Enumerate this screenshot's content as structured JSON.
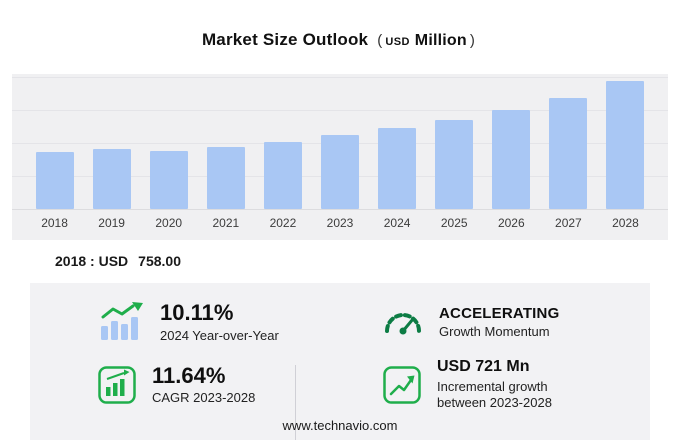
{
  "title": {
    "main": "Market Size Outlook",
    "open": "(",
    "currency": "USD",
    "word": "Million",
    "close": ")"
  },
  "chart_data": {
    "type": "bar",
    "title": "Market Size Outlook (USD Million)",
    "categories": [
      "2018",
      "2019",
      "2020",
      "2021",
      "2022",
      "2023",
      "2024",
      "2025",
      "2026",
      "2027",
      "2028"
    ],
    "values": [
      758,
      800,
      780,
      830,
      890,
      981,
      1080,
      1190,
      1320,
      1480,
      1702
    ],
    "unit": "USD Million",
    "xlabel": "",
    "ylabel": "",
    "ylim": [
      0,
      1800
    ],
    "grid": true,
    "legend": false,
    "bar_color": "#a9c7f4"
  },
  "annotation": {
    "base_label": "2018 : USD",
    "base_value": "758.00"
  },
  "stats": {
    "yoy": {
      "value": "10.11%",
      "label": "2024 Year-over-Year"
    },
    "momentum": {
      "value": "ACCELERATING",
      "label": "Growth Momentum"
    },
    "cagr": {
      "value": "11.64%",
      "label": "CAGR 2023-2028"
    },
    "incremental": {
      "value": "USD 721 Mn",
      "label": "Incremental growth between 2023-2028"
    }
  },
  "icons": {
    "yoy": "bars-with-up-arrow-icon",
    "momentum": "gauge-icon",
    "cagr": "boxed-bar-chart-icon",
    "incremental": "boxed-line-chart-icon"
  },
  "footer": {
    "url": "www.technavio.com"
  },
  "colors": {
    "bar": "#a9c7f4",
    "green": "#1fae4b",
    "dark_green": "#0c7c44",
    "panel": "#f2f2f4"
  }
}
